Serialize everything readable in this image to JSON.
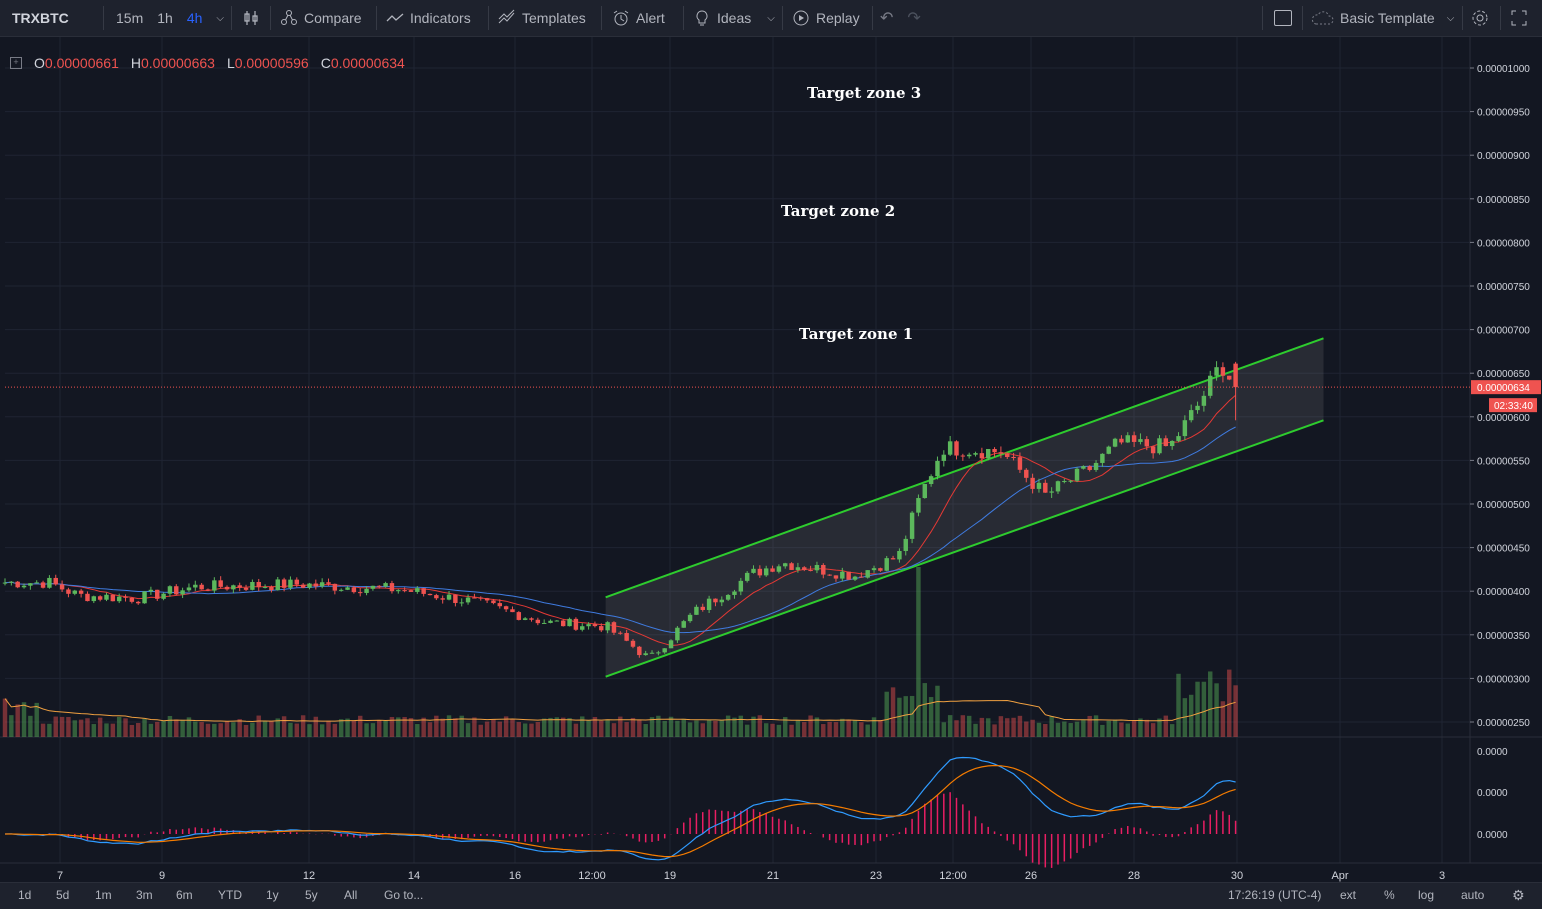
{
  "toolbar": {
    "symbol": "TRXBTC",
    "intervals": [
      "15m",
      "1h",
      "4h"
    ],
    "active_interval": "4h",
    "compare": "Compare",
    "indicators": "Indicators",
    "templates": "Templates",
    "alert": "Alert",
    "ideas": "Ideas",
    "replay": "Replay",
    "basic_template": "Basic Template"
  },
  "legend": {
    "o_label": "O",
    "o": "0.00000661",
    "h_label": "H",
    "h": "0.00000663",
    "l_label": "L",
    "l": "0.00000596",
    "c_label": "C",
    "c": "0.00000634"
  },
  "annotations": {
    "zone3": "Target zone 3",
    "zone2": "Target zone 2",
    "zone1": "Target zone 1"
  },
  "price_axis": {
    "ticks": [
      "0.00001000",
      "0.00000950",
      "0.00000900",
      "0.00000850",
      "0.00000800",
      "0.00000750",
      "0.00000700",
      "0.00000650",
      "0.00000600",
      "0.00000550",
      "0.00000500",
      "0.00000450",
      "0.00000400",
      "0.00000350",
      "0.00000300",
      "0.00000250"
    ],
    "current_price": "0.00000634",
    "countdown": "02:33:40"
  },
  "macd_axis": {
    "ticks": [
      "0.0000",
      "0.0000",
      "0.0000"
    ]
  },
  "time_axis": {
    "ticks": [
      "7",
      "9",
      "12",
      "14",
      "16",
      "12:00",
      "19",
      "21",
      "23",
      "12:00",
      "26",
      "28",
      "30",
      "Apr",
      "3"
    ]
  },
  "bottom": {
    "ranges": [
      "1d",
      "5d",
      "1m",
      "3m",
      "6m",
      "YTD",
      "1y",
      "5y",
      "All"
    ],
    "goto": "Go to...",
    "clock": "17:26:19 (UTC-4)",
    "ext": "ext",
    "pct": "%",
    "log": "log",
    "auto": "auto"
  },
  "colors": {
    "bg": "#131722",
    "up": "#5cb85c",
    "down": "#ef5350",
    "channel": "#2ecc2e",
    "ma_fast": "#e53935",
    "ma_slow": "#3f7be0",
    "macd": "#2f9bff",
    "signal": "#f57c00",
    "hist": "#e91e63",
    "vol_ma": "#f0a040"
  },
  "chart_data": {
    "type": "candlestick",
    "symbol": "TRXBTC",
    "interval": "4h",
    "ylim": [
      2.3e-06,
      1.025e-05
    ],
    "price_path": [
      {
        "t": 0,
        "p": 4.1e-06
      },
      {
        "t": 0.03,
        "p": 4.1e-06
      },
      {
        "t": 0.05,
        "p": 3.95e-06
      },
      {
        "t": 0.09,
        "p": 3.92e-06
      },
      {
        "t": 0.13,
        "p": 4.05e-06
      },
      {
        "t": 0.2,
        "p": 4.08e-06
      },
      {
        "t": 0.27,
        "p": 4.02e-06
      },
      {
        "t": 0.32,
        "p": 3.88e-06
      },
      {
        "t": 0.37,
        "p": 3.64e-06
      },
      {
        "t": 0.41,
        "p": 3.6e-06
      },
      {
        "t": 0.43,
        "p": 3.35e-06
      },
      {
        "t": 0.44,
        "p": 3.22e-06
      },
      {
        "t": 0.47,
        "p": 3.75e-06
      },
      {
        "t": 0.51,
        "p": 4.2e-06
      },
      {
        "t": 0.53,
        "p": 4.33e-06
      },
      {
        "t": 0.58,
        "p": 4.18e-06
      },
      {
        "t": 0.61,
        "p": 4.4e-06
      },
      {
        "t": 0.625,
        "p": 5.1e-06
      },
      {
        "t": 0.64,
        "p": 5.65e-06
      },
      {
        "t": 0.68,
        "p": 5.6e-06
      },
      {
        "t": 0.71,
        "p": 5.1e-06
      },
      {
        "t": 0.74,
        "p": 5.4e-06
      },
      {
        "t": 0.76,
        "p": 5.7e-06
      },
      {
        "t": 0.795,
        "p": 5.65e-06
      },
      {
        "t": 0.815,
        "p": 6.15e-06
      },
      {
        "t": 0.83,
        "p": 6.61e-06
      },
      {
        "t": 0.84,
        "p": 6.34e-06
      }
    ],
    "channel": {
      "upper": [
        {
          "t": 0.41,
          "p": 3.93e-06
        },
        {
          "t": 0.9,
          "p": 6.9e-06
        }
      ],
      "lower": [
        {
          "t": 0.41,
          "p": 3.02e-06
        },
        {
          "t": 0.9,
          "p": 5.96e-06
        }
      ]
    },
    "annotations": [
      "Target zone 1",
      "Target zone 2",
      "Target zone 3"
    ],
    "last": {
      "open": 6.61e-06,
      "high": 6.63e-06,
      "low": 5.96e-06,
      "close": 6.34e-06
    }
  }
}
